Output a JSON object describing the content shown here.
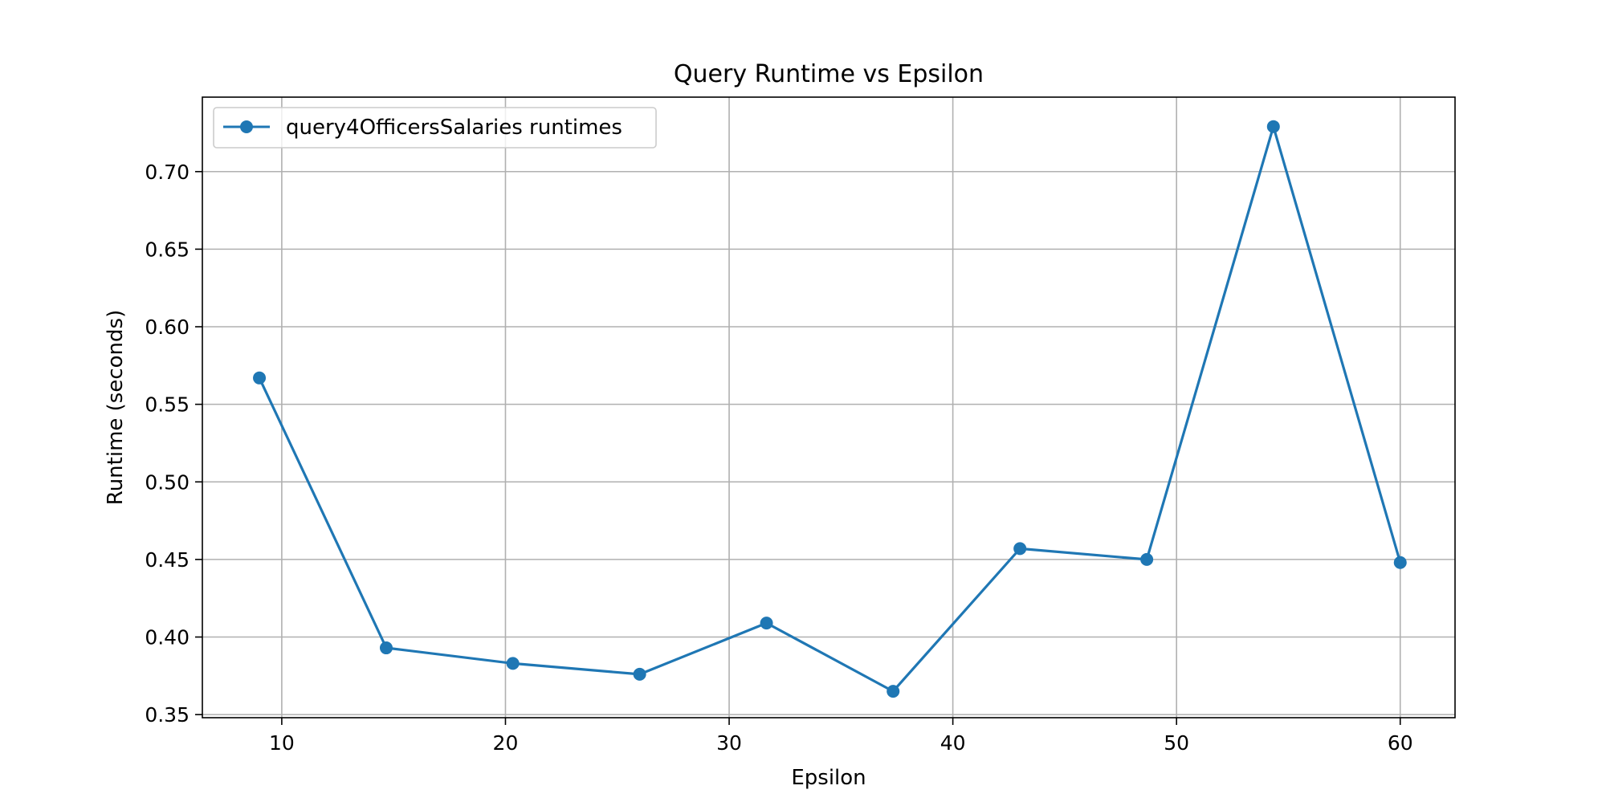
{
  "chart_data": {
    "type": "line",
    "title": "Query Runtime vs Epsilon",
    "xlabel": "Epsilon",
    "ylabel": "Runtime (seconds)",
    "xlim": [
      6.45,
      62.45
    ],
    "ylim": [
      0.348,
      0.748
    ],
    "xticks": [
      10,
      20,
      30,
      40,
      50,
      60
    ],
    "yticks": [
      0.35,
      0.4,
      0.45,
      0.5,
      0.55,
      0.6,
      0.65,
      0.7
    ],
    "ytick_decimals": 2,
    "grid": true,
    "legend_position": "top-left",
    "series": [
      {
        "name": "query4OfficersSalaries runtimes",
        "color": "#1f77b4",
        "marker": "circle",
        "x": [
          9.0,
          14.67,
          20.33,
          26.0,
          31.67,
          37.33,
          43.0,
          48.67,
          54.33,
          60.0
        ],
        "y": [
          0.567,
          0.393,
          0.383,
          0.376,
          0.409,
          0.365,
          0.457,
          0.45,
          0.729,
          0.448
        ]
      }
    ]
  }
}
